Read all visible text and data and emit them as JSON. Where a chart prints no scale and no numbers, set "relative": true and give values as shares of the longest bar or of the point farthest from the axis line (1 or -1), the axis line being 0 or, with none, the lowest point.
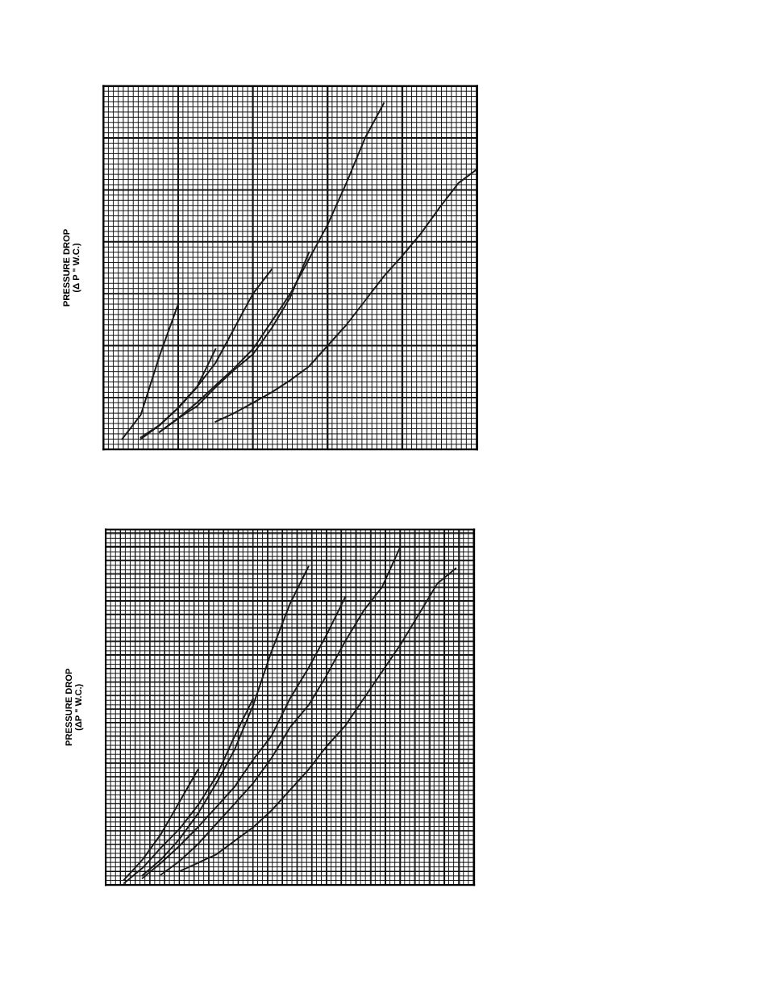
{
  "chart_data": [
    {
      "type": "line",
      "relative": true,
      "ylabel": "PRESSURE DROP\n(Δ P \" W.C.)",
      "grid": true,
      "tick_labels": false,
      "marker": "none",
      "line_style": "solid",
      "categories": [
        null,
        null,
        null,
        null,
        null,
        null,
        null,
        null,
        null,
        null,
        null,
        null,
        null,
        null,
        null,
        null,
        null,
        null,
        null,
        null,
        null
      ],
      "series": [
        {
          "color": "#1a1a1a",
          "values": [
            null,
            0.03,
            0.1,
            0.27,
            0.42,
            null,
            null,
            null,
            null,
            null,
            null,
            null,
            null,
            null,
            null,
            null,
            null,
            null,
            null,
            null,
            null
          ]
        },
        {
          "color": "#1a1a1a",
          "values": [
            null,
            null,
            0.035,
            0.07,
            0.12,
            0.18,
            0.29,
            null,
            null,
            null,
            null,
            null,
            null,
            null,
            null,
            null,
            null,
            null,
            null,
            null,
            null
          ]
        },
        {
          "color": "#1a1a1a",
          "values": [
            null,
            null,
            0.03,
            0.07,
            0.12,
            0.18,
            0.25,
            0.35,
            0.45,
            0.52,
            null,
            null,
            null,
            null,
            null,
            null,
            null,
            null,
            null,
            null,
            null
          ]
        },
        {
          "color": "#1a1a1a",
          "values": [
            null,
            null,
            null,
            0.05,
            0.09,
            0.125,
            0.18,
            0.23,
            0.275,
            0.35,
            0.44,
            0.57,
            null,
            null,
            null,
            null,
            null,
            null,
            null,
            null,
            null
          ]
        },
        {
          "color": "#1a1a1a",
          "values": [
            null,
            null,
            null,
            0.05,
            0.09,
            0.135,
            0.185,
            0.235,
            0.29,
            0.37,
            0.45,
            0.55,
            0.65,
            0.77,
            0.9,
            1,
            null,
            null,
            null,
            null,
            null
          ]
        },
        {
          "color": "#1a1a1a",
          "values": [
            null,
            null,
            null,
            null,
            null,
            null,
            0.08,
            0.105,
            0.135,
            0.165,
            0.2,
            0.24,
            0.3,
            0.36,
            0.43,
            0.5,
            0.56,
            0.625,
            0.7,
            0.77,
            0.81
          ]
        }
      ]
    },
    {
      "type": "line",
      "relative": true,
      "ylabel": "PRESSURE DROP\n(ΔP \" W.C.)",
      "grid": true,
      "tick_labels": false,
      "marker": "none",
      "line_style": "solid",
      "categories": [
        null,
        null,
        null,
        null,
        null,
        null,
        null,
        null,
        null,
        null,
        null,
        null,
        null,
        null,
        null,
        null,
        null,
        null,
        null,
        null,
        null
      ],
      "series": [
        {
          "color": "#1a1a1a",
          "values": [
            null,
            0.015,
            0.075,
            0.15,
            0.245,
            0.34,
            null,
            null,
            null,
            null,
            null,
            null,
            null,
            null,
            null,
            null,
            null,
            null,
            null,
            null,
            null
          ]
        },
        {
          "color": "#1a1a1a",
          "values": [
            null,
            0.005,
            0.05,
            0.11,
            0.165,
            0.235,
            0.32,
            0.44,
            0.55,
            null,
            null,
            null,
            null,
            null,
            null,
            null,
            null,
            null,
            null,
            null,
            null
          ]
        },
        {
          "color": "#1a1a1a",
          "values": [
            null,
            null,
            0.028,
            0.075,
            0.135,
            0.21,
            0.3,
            0.4,
            0.53,
            0.69,
            0.83,
            0.94,
            null,
            null,
            null,
            null,
            null,
            null,
            null,
            null,
            null
          ]
        },
        {
          "color": "#1a1a1a",
          "values": [
            null,
            null,
            0.02,
            0.065,
            0.115,
            0.17,
            0.23,
            0.29,
            0.37,
            0.44,
            0.55,
            0.64,
            0.74,
            0.85,
            null,
            null,
            null,
            null,
            null,
            null,
            null
          ]
        },
        {
          "color": "#1a1a1a",
          "values": [
            null,
            null,
            null,
            0.03,
            0.07,
            0.12,
            0.18,
            0.24,
            0.3,
            0.375,
            0.465,
            0.53,
            0.62,
            0.72,
            0.81,
            0.88,
            1,
            null,
            null,
            null,
            null
          ]
        },
        {
          "color": "#1a1a1a",
          "values": [
            null,
            null,
            null,
            null,
            0.04,
            0.065,
            0.09,
            0.13,
            0.17,
            0.22,
            0.28,
            0.34,
            0.41,
            0.47,
            0.55,
            0.63,
            0.71,
            0.8,
            0.89,
            0.935,
            null
          ]
        }
      ]
    }
  ]
}
